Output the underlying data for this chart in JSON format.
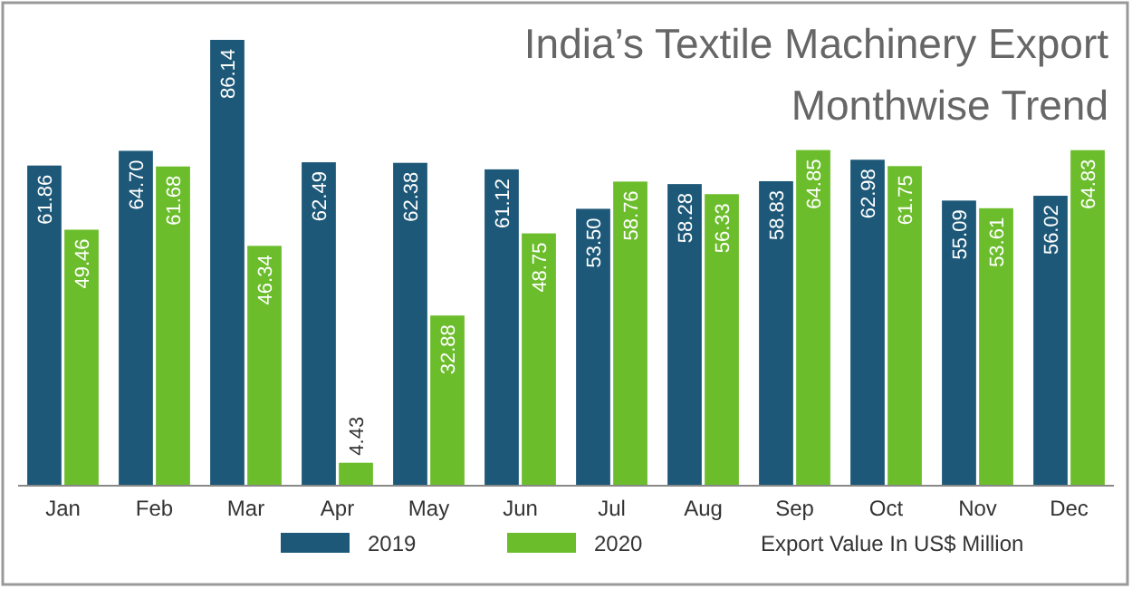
{
  "chart_data": {
    "type": "bar",
    "title": "India’s Textile Machinery Export",
    "subtitle": "Monthwise Trend",
    "categories": [
      "Jan",
      "Feb",
      "Mar",
      "Apr",
      "May",
      "Jun",
      "Jul",
      "Aug",
      "Sep",
      "Oct",
      "Nov",
      "Dec"
    ],
    "series": [
      {
        "name": "2019",
        "color": "#1d5878",
        "values": [
          61.86,
          64.7,
          86.14,
          62.49,
          62.38,
          61.12,
          53.5,
          58.28,
          58.83,
          62.98,
          55.09,
          56.02
        ],
        "value_labels": [
          "61.86",
          "64.70",
          "86.14",
          "62.49",
          "62.38",
          "61.12",
          "53.50",
          "58.28",
          "58.83",
          "62.98",
          "55.09",
          "56.02"
        ]
      },
      {
        "name": "2020",
        "color": "#6cbd2c",
        "values": [
          49.46,
          61.68,
          46.34,
          4.43,
          32.88,
          48.75,
          58.76,
          56.33,
          64.85,
          61.75,
          53.61,
          64.83
        ],
        "value_labels": [
          "49.46",
          "61.68",
          "46.34",
          "4.43",
          "32.88",
          "48.75",
          "58.76",
          "56.33",
          "64.85",
          "61.75",
          "53.61",
          "64.83"
        ]
      }
    ],
    "legend": "bottom",
    "annotations": [
      "Export Value In US$ Million"
    ]
  }
}
